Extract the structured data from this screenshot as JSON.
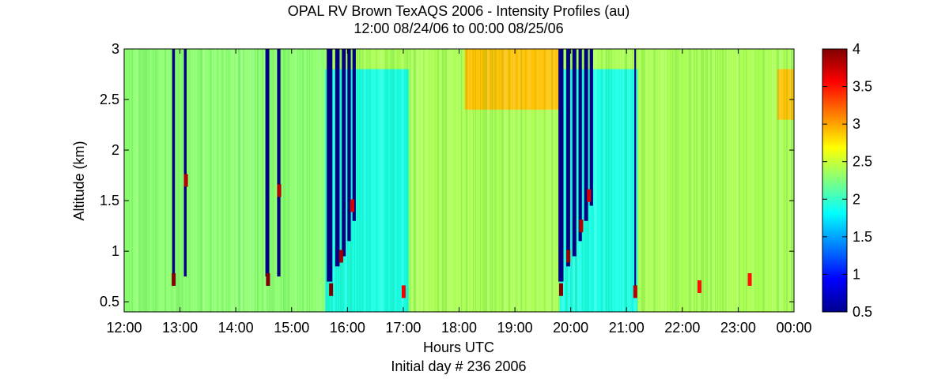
{
  "chart_data": {
    "type": "heatmap",
    "title": "OPAL RV Brown TexAQS 2006 - Intensity Profiles (au)",
    "subtitle": "12:00 08/24/06 to 00:00 08/25/06",
    "xlabel": "Hours UTC",
    "xlabel2": "Initial day # 236  2006",
    "ylabel": "Altitude (km)",
    "x_ticks": [
      "12:00",
      "13:00",
      "14:00",
      "15:00",
      "16:00",
      "17:00",
      "18:00",
      "19:00",
      "20:00",
      "21:00",
      "22:00",
      "23:00",
      "00:00"
    ],
    "xlim_hours": [
      12,
      24
    ],
    "y_ticks": [
      "0.5",
      "1",
      "1.5",
      "2",
      "2.5",
      "3"
    ],
    "y_tick_values": [
      0.5,
      1,
      1.5,
      2,
      2.5,
      3
    ],
    "ylim": [
      0.4,
      3
    ],
    "colorbar": {
      "colormap": "jet",
      "ticks": [
        "0.5",
        "1",
        "1.5",
        "2",
        "2.5",
        "3",
        "3.5",
        "4"
      ],
      "tick_values": [
        0.5,
        1,
        1.5,
        2,
        2.5,
        3,
        3.5,
        4
      ],
      "range": [
        0.5,
        4
      ]
    },
    "background_intensity": 2.4,
    "regions": [
      {
        "x": [
          12.0,
          15.6
        ],
        "y": [
          0.4,
          3.0
        ],
        "value": 2.3
      },
      {
        "x": [
          15.6,
          17.1
        ],
        "y": [
          0.4,
          2.8
        ],
        "value": 1.9
      },
      {
        "x": [
          17.1,
          19.8
        ],
        "y": [
          0.4,
          3.0
        ],
        "value": 2.4
      },
      {
        "x": [
          18.1,
          19.8
        ],
        "y": [
          2.4,
          3.0
        ],
        "value": 2.9
      },
      {
        "x": [
          19.8,
          21.2
        ],
        "y": [
          0.4,
          2.8
        ],
        "value": 1.9
      },
      {
        "x": [
          21.2,
          24.0
        ],
        "y": [
          0.4,
          3.0
        ],
        "value": 2.4
      },
      {
        "x": [
          23.7,
          24.0
        ],
        "y": [
          2.3,
          2.8
        ],
        "value": 2.9
      }
    ],
    "low_signal_columns": [
      {
        "x": [
          12.86,
          12.91
        ],
        "y": [
          0.75,
          3.0
        ]
      },
      {
        "x": [
          13.07,
          13.12
        ],
        "y": [
          0.75,
          3.0
        ]
      },
      {
        "x": [
          14.53,
          14.6
        ],
        "y": [
          0.75,
          3.0
        ]
      },
      {
        "x": [
          14.74,
          14.8
        ],
        "y": [
          0.75,
          3.0
        ]
      },
      {
        "x": [
          15.63,
          15.73
        ],
        "y": [
          0.7,
          3.0
        ]
      },
      {
        "x": [
          15.78,
          15.86
        ],
        "y": [
          0.85,
          3.0
        ]
      },
      {
        "x": [
          15.9,
          15.97
        ],
        "y": [
          0.95,
          3.0
        ]
      },
      {
        "x": [
          16.0,
          16.06
        ],
        "y": [
          1.1,
          3.0
        ]
      },
      {
        "x": [
          16.09,
          16.15
        ],
        "y": [
          1.3,
          3.0
        ]
      },
      {
        "x": [
          19.78,
          19.87
        ],
        "y": [
          0.7,
          3.0
        ]
      },
      {
        "x": [
          19.92,
          19.99
        ],
        "y": [
          0.85,
          3.0
        ]
      },
      {
        "x": [
          20.03,
          20.1
        ],
        "y": [
          0.95,
          3.0
        ]
      },
      {
        "x": [
          20.14,
          20.2
        ],
        "y": [
          1.1,
          3.0
        ]
      },
      {
        "x": [
          20.24,
          20.31
        ],
        "y": [
          1.3,
          3.0
        ]
      },
      {
        "x": [
          20.34,
          20.4
        ],
        "y": [
          1.45,
          3.0
        ]
      },
      {
        "x": [
          21.14,
          21.17
        ],
        "y": [
          0.65,
          3.0
        ]
      }
    ],
    "high_signal_spots": [
      {
        "x": 12.88,
        "y": 0.72,
        "value": 4.0
      },
      {
        "x": 13.1,
        "y": 1.7,
        "value": 3.8
      },
      {
        "x": 14.57,
        "y": 0.72,
        "value": 4.0
      },
      {
        "x": 14.77,
        "y": 1.6,
        "value": 3.8
      },
      {
        "x": 15.7,
        "y": 0.62,
        "value": 4.0
      },
      {
        "x": 15.88,
        "y": 0.95,
        "value": 3.9
      },
      {
        "x": 16.08,
        "y": 1.45,
        "value": 3.7
      },
      {
        "x": 17.0,
        "y": 0.6,
        "value": 3.6
      },
      {
        "x": 19.82,
        "y": 0.62,
        "value": 4.0
      },
      {
        "x": 19.95,
        "y": 0.95,
        "value": 3.9
      },
      {
        "x": 20.18,
        "y": 1.25,
        "value": 3.8
      },
      {
        "x": 20.32,
        "y": 1.55,
        "value": 3.7
      },
      {
        "x": 21.15,
        "y": 0.6,
        "value": 3.8
      },
      {
        "x": 22.3,
        "y": 0.65,
        "value": 3.5
      },
      {
        "x": 23.2,
        "y": 0.72,
        "value": 3.5
      }
    ],
    "grid": false,
    "legend": "colorbar-right"
  }
}
